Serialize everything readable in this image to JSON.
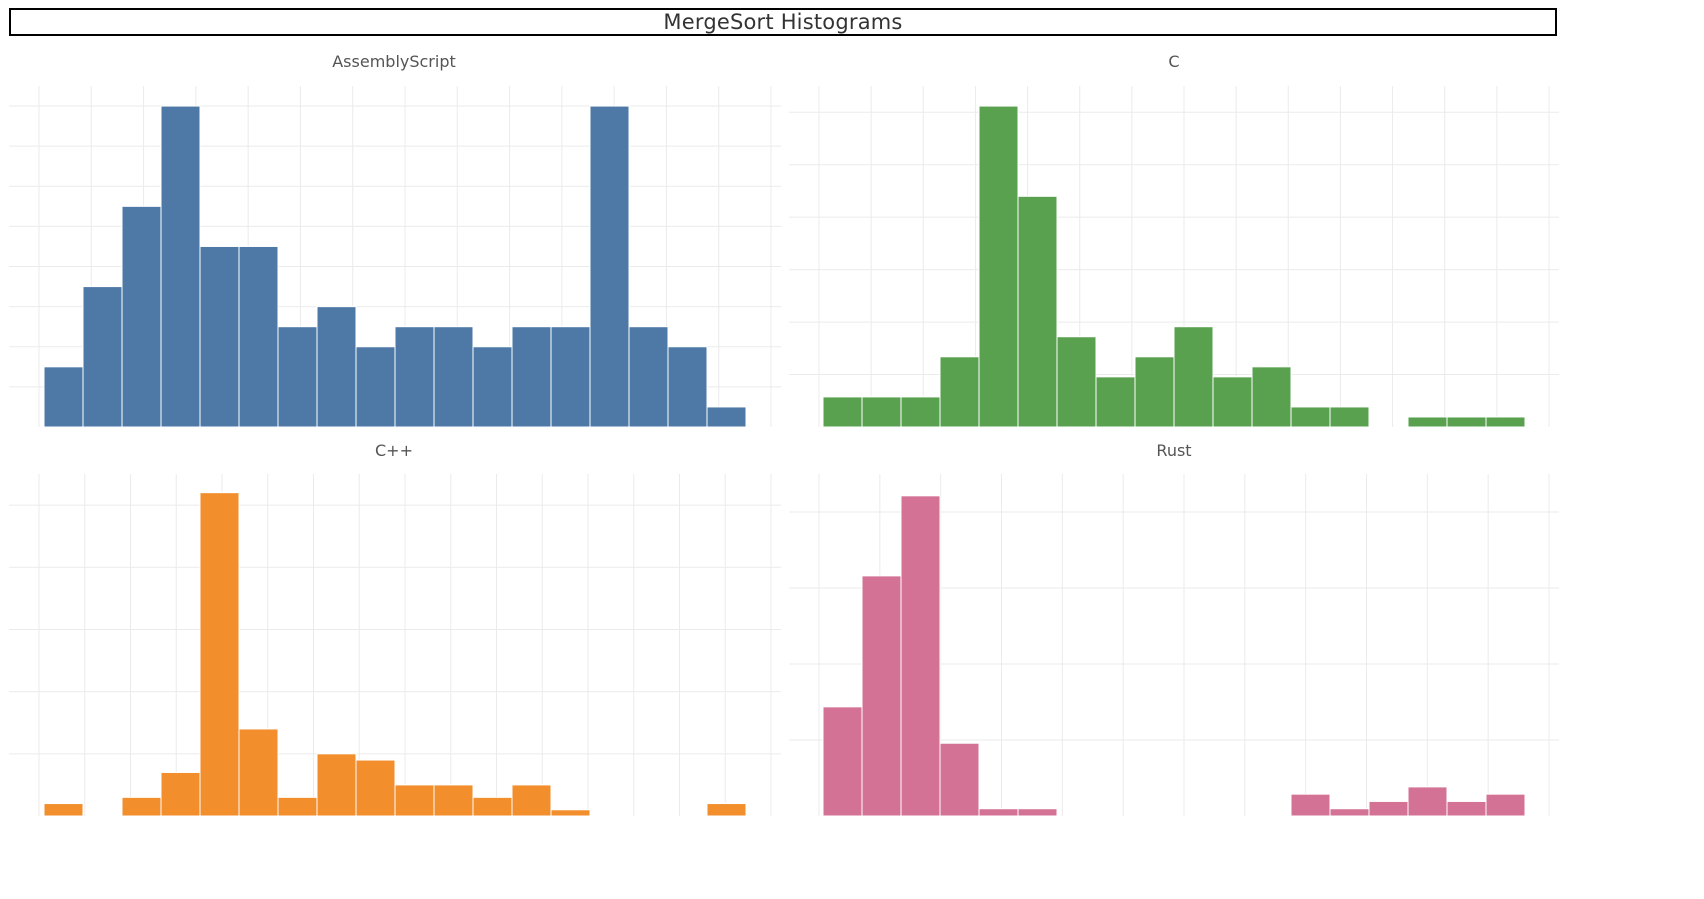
{
  "title": "MergeSort Histograms",
  "chart_data": [
    {
      "type": "bar",
      "title": "AssemblyScript",
      "color": "#4e79a7",
      "bins": 18,
      "values": [
        3,
        7,
        11,
        16,
        9,
        9,
        5,
        6,
        4,
        5,
        5,
        4,
        5,
        5,
        16,
        5,
        4,
        1
      ],
      "ylim": [
        0,
        17
      ],
      "grid": true
    },
    {
      "type": "bar",
      "title": "C",
      "color": "#59a14f",
      "bins": 18,
      "values": [
        1.5,
        1.5,
        1.5,
        3.5,
        16,
        11.5,
        4.5,
        2.5,
        3.5,
        5,
        2.5,
        3,
        1,
        1,
        0,
        0.5,
        0.5,
        0.5
      ],
      "ylim": [
        0,
        17
      ],
      "grid": true
    },
    {
      "type": "bar",
      "title": "C++",
      "color": "#f28e2b",
      "bins": 18,
      "values": [
        1,
        0,
        1.5,
        3.5,
        26,
        7,
        1.5,
        5,
        4.5,
        2.5,
        2.5,
        1.5,
        2.5,
        0.5,
        0,
        0,
        0,
        1
      ],
      "ylim": [
        0,
        27.5
      ],
      "grid": true
    },
    {
      "type": "bar",
      "title": "Rust",
      "color": "#d37295",
      "bins": 18,
      "values": [
        7.5,
        16.5,
        22,
        5,
        0.5,
        0.5,
        0,
        0,
        0,
        0,
        0,
        0,
        1.5,
        0.5,
        1,
        2,
        1,
        1.5
      ],
      "ylim": [
        0,
        23.5
      ],
      "grid": true
    }
  ]
}
